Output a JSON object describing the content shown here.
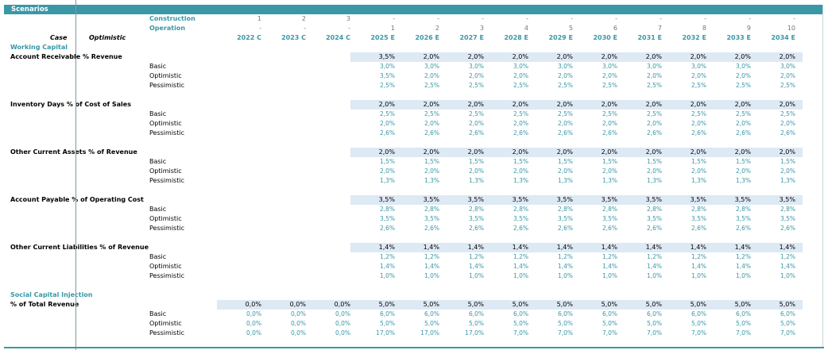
{
  "title": "Scenarios",
  "header": {
    "construction_label": "Construction",
    "operation_label": "Operation",
    "construction_values": [
      "1",
      "2",
      "3",
      "-",
      "-",
      "-",
      "-",
      "-",
      "-",
      "-",
      "-",
      "-",
      "-"
    ],
    "operation_values": [
      "-",
      "-",
      "-",
      "1",
      "2",
      "3",
      "4",
      "5",
      "6",
      "7",
      "8",
      "9",
      "10"
    ],
    "years": [
      "2022 C",
      "2023 C",
      "2024 C",
      "2025 E",
      "2026 E",
      "2027 E",
      "2028 E",
      "2029 E",
      "2030 E",
      "2031 E",
      "2032 E",
      "2033 E",
      "2034 E"
    ],
    "case_label": "Case",
    "case_value": "Optimistic"
  },
  "sections": {
    "working_capital": "Working Capital",
    "social_capital": "Social Capital Injection"
  },
  "case_names": [
    "Basic",
    "Optimistic",
    "Pessimistic"
  ],
  "metrics": [
    {
      "title": "Account Receivable % Revenue",
      "selected": [
        "",
        "",
        "",
        "3,5%",
        "2,0%",
        "2,0%",
        "2,0%",
        "2,0%",
        "2,0%",
        "2,0%",
        "2,0%",
        "2,0%",
        "2,0%"
      ],
      "cases": [
        [
          "",
          "",
          "",
          "3,0%",
          "3,0%",
          "3,0%",
          "3,0%",
          "3,0%",
          "3,0%",
          "3,0%",
          "3,0%",
          "3,0%",
          "3,0%"
        ],
        [
          "",
          "",
          "",
          "3,5%",
          "2,0%",
          "2,0%",
          "2,0%",
          "2,0%",
          "2,0%",
          "2,0%",
          "2,0%",
          "2,0%",
          "2,0%"
        ],
        [
          "",
          "",
          "",
          "2,5%",
          "2,5%",
          "2,5%",
          "2,5%",
          "2,5%",
          "2,5%",
          "2,5%",
          "2,5%",
          "2,5%",
          "2,5%"
        ]
      ]
    },
    {
      "title": "Inventory Days % of Cost of Sales",
      "selected": [
        "",
        "",
        "",
        "2,0%",
        "2,0%",
        "2,0%",
        "2,0%",
        "2,0%",
        "2,0%",
        "2,0%",
        "2,0%",
        "2,0%",
        "2,0%"
      ],
      "cases": [
        [
          "",
          "",
          "",
          "2,5%",
          "2,5%",
          "2,5%",
          "2,5%",
          "2,5%",
          "2,5%",
          "2,5%",
          "2,5%",
          "2,5%",
          "2,5%"
        ],
        [
          "",
          "",
          "",
          "2,0%",
          "2,0%",
          "2,0%",
          "2,0%",
          "2,0%",
          "2,0%",
          "2,0%",
          "2,0%",
          "2,0%",
          "2,0%"
        ],
        [
          "",
          "",
          "",
          "2,6%",
          "2,6%",
          "2,6%",
          "2,6%",
          "2,6%",
          "2,6%",
          "2,6%",
          "2,6%",
          "2,6%",
          "2,6%"
        ]
      ]
    },
    {
      "title": "Other Current Assets % of Revenue",
      "selected": [
        "",
        "",
        "",
        "2,0%",
        "2,0%",
        "2,0%",
        "2,0%",
        "2,0%",
        "2,0%",
        "2,0%",
        "2,0%",
        "2,0%",
        "2,0%"
      ],
      "cases": [
        [
          "",
          "",
          "",
          "1,5%",
          "1,5%",
          "1,5%",
          "1,5%",
          "1,5%",
          "1,5%",
          "1,5%",
          "1,5%",
          "1,5%",
          "1,5%"
        ],
        [
          "",
          "",
          "",
          "2,0%",
          "2,0%",
          "2,0%",
          "2,0%",
          "2,0%",
          "2,0%",
          "2,0%",
          "2,0%",
          "2,0%",
          "2,0%"
        ],
        [
          "",
          "",
          "",
          "1,3%",
          "1,3%",
          "1,3%",
          "1,3%",
          "1,3%",
          "1,3%",
          "1,3%",
          "1,3%",
          "1,3%",
          "1,3%"
        ]
      ]
    },
    {
      "title": "Account Payable % of Operating Cost",
      "selected": [
        "",
        "",
        "",
        "3,5%",
        "3,5%",
        "3,5%",
        "3,5%",
        "3,5%",
        "3,5%",
        "3,5%",
        "3,5%",
        "3,5%",
        "3,5%"
      ],
      "cases": [
        [
          "",
          "",
          "",
          "2,8%",
          "2,8%",
          "2,8%",
          "2,8%",
          "2,8%",
          "2,8%",
          "2,8%",
          "2,8%",
          "2,8%",
          "2,8%"
        ],
        [
          "",
          "",
          "",
          "3,5%",
          "3,5%",
          "3,5%",
          "3,5%",
          "3,5%",
          "3,5%",
          "3,5%",
          "3,5%",
          "3,5%",
          "3,5%"
        ],
        [
          "",
          "",
          "",
          "2,6%",
          "2,6%",
          "2,6%",
          "2,6%",
          "2,6%",
          "2,6%",
          "2,6%",
          "2,6%",
          "2,6%",
          "2,6%"
        ]
      ]
    },
    {
      "title": "Other Current Liabilities % of Revenue",
      "selected": [
        "",
        "",
        "",
        "1,4%",
        "1,4%",
        "1,4%",
        "1,4%",
        "1,4%",
        "1,4%",
        "1,4%",
        "1,4%",
        "1,4%",
        "1,4%"
      ],
      "cases": [
        [
          "",
          "",
          "",
          "1,2%",
          "1,2%",
          "1,2%",
          "1,2%",
          "1,2%",
          "1,2%",
          "1,2%",
          "1,2%",
          "1,2%",
          "1,2%"
        ],
        [
          "",
          "",
          "",
          "1,4%",
          "1,4%",
          "1,4%",
          "1,4%",
          "1,4%",
          "1,4%",
          "1,4%",
          "1,4%",
          "1,4%",
          "1,4%"
        ],
        [
          "",
          "",
          "",
          "1,0%",
          "1,0%",
          "1,0%",
          "1,0%",
          "1,0%",
          "1,0%",
          "1,0%",
          "1,0%",
          "1,0%",
          "1,0%"
        ]
      ]
    },
    {
      "title": "% of Total Revenue",
      "selected": [
        "0,0%",
        "0,0%",
        "0,0%",
        "5,0%",
        "5,0%",
        "5,0%",
        "5,0%",
        "5,0%",
        "5,0%",
        "5,0%",
        "5,0%",
        "5,0%",
        "5,0%"
      ],
      "cases": [
        [
          "0,0%",
          "0,0%",
          "0,0%",
          "6,0%",
          "6,0%",
          "6,0%",
          "6,0%",
          "6,0%",
          "6,0%",
          "6,0%",
          "6,0%",
          "6,0%",
          "6,0%"
        ],
        [
          "0,0%",
          "0,0%",
          "0,0%",
          "5,0%",
          "5,0%",
          "5,0%",
          "5,0%",
          "5,0%",
          "5,0%",
          "5,0%",
          "5,0%",
          "5,0%",
          "5,0%"
        ],
        [
          "0,0%",
          "0,0%",
          "0,0%",
          "17,0%",
          "17,0%",
          "17,0%",
          "7,0%",
          "7,0%",
          "7,0%",
          "7,0%",
          "7,0%",
          "7,0%",
          "7,0%"
        ]
      ]
    }
  ]
}
